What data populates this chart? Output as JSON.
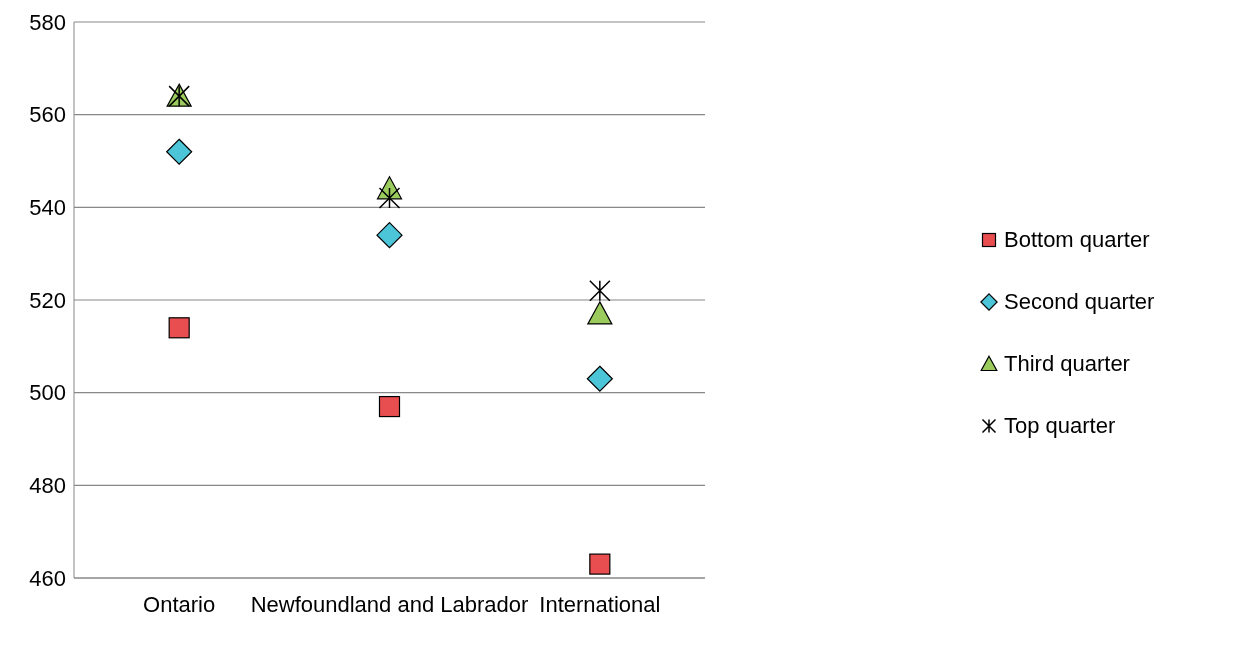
{
  "chart_data": {
    "type": "scatter",
    "categories": [
      "Ontario",
      "Newfoundland and Labrador",
      "International"
    ],
    "series": [
      {
        "name": "Bottom quarter",
        "color": "#e84e50",
        "marker": "square",
        "values": [
          514,
          497,
          463
        ]
      },
      {
        "name": "Second quarter",
        "color": "#4cc5d8",
        "marker": "diamond",
        "values": [
          552,
          534,
          503
        ]
      },
      {
        "name": "Third quarter",
        "color": "#9acb5c",
        "marker": "triangle",
        "values": [
          564,
          544,
          517
        ]
      },
      {
        "name": "Top quarter",
        "color": "#000000",
        "marker": "cross",
        "values": [
          564,
          542,
          522
        ]
      }
    ],
    "ylim": [
      460,
      580
    ],
    "yticks": [
      460,
      480,
      500,
      520,
      540,
      560,
      580
    ],
    "grid": "y",
    "legend": "right"
  }
}
